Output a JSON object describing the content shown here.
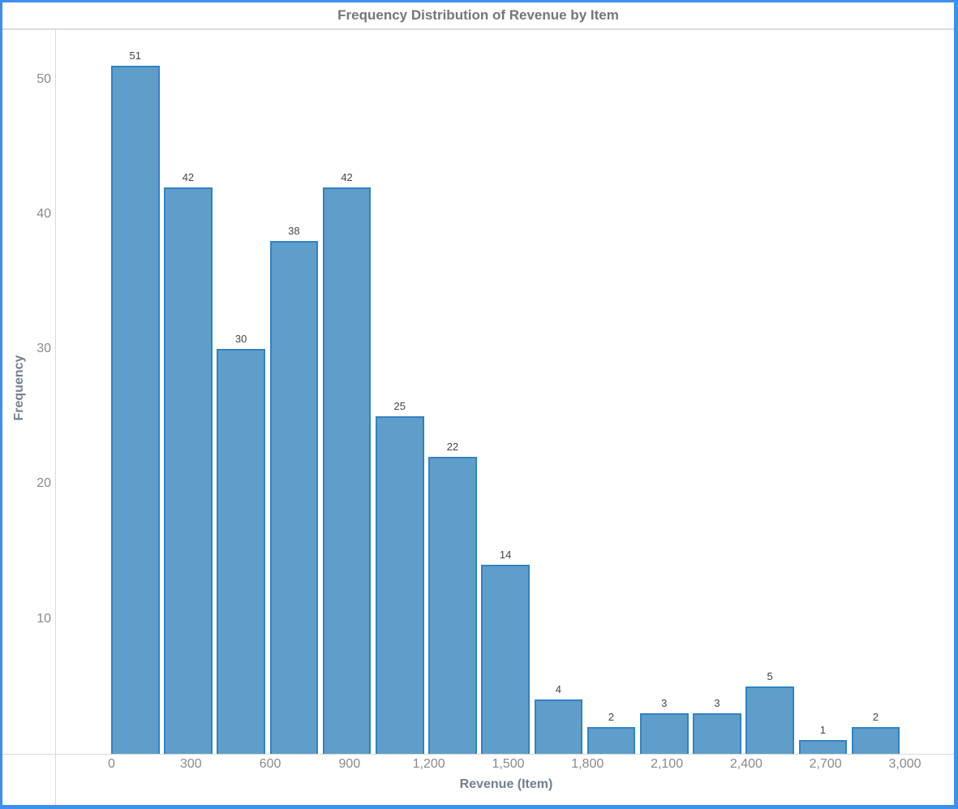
{
  "window": {
    "border_color": "#3D8FF0",
    "background": "#FFFFFF"
  },
  "header": {
    "title": "Frequency Distribution of Revenue by Item"
  },
  "chart_data": {
    "type": "bar",
    "subtype": "histogram",
    "title": "Frequency Distribution of Revenue by Item",
    "xlabel": "Revenue (Item)",
    "ylabel": "Frequency",
    "bin_edges": [
      0,
      200,
      400,
      600,
      800,
      1000,
      1200,
      1400,
      1600,
      1800,
      2000,
      2200,
      2400,
      2600,
      2800,
      3000
    ],
    "values": [
      51,
      42,
      30,
      38,
      42,
      25,
      22,
      14,
      4,
      2,
      3,
      3,
      5,
      1,
      2
    ],
    "x_ticks": [
      0,
      300,
      600,
      900,
      1200,
      1500,
      1800,
      2100,
      2400,
      2700,
      3000
    ],
    "x_tick_labels": [
      "0",
      "300",
      "600",
      "900",
      "1,200",
      "1,500",
      "1,800",
      "2,100",
      "2,400",
      "2,700",
      "3,000"
    ],
    "y_ticks": [
      10,
      20,
      30,
      40,
      50
    ],
    "y_tick_labels": [
      "10",
      "20",
      "30",
      "40",
      "50"
    ],
    "xlim": [
      0,
      3000
    ],
    "ylim": [
      0,
      54
    ],
    "grid": false,
    "legend": false,
    "value_labels_shown": true,
    "bar_color": "#5F9ECB",
    "bar_border_color": "#3282C2",
    "axis_line_color": "#D9D9D9",
    "tick_label_color": "#8A8A8A",
    "axis_title_color": "#71808F",
    "title_color": "#767676",
    "value_label_color": "#454545"
  }
}
